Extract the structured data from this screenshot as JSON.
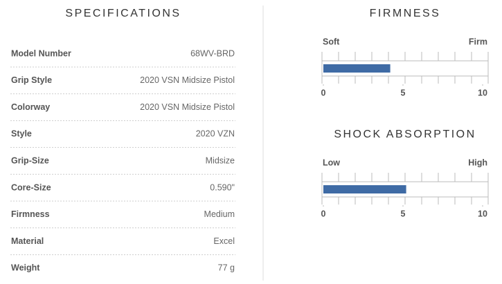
{
  "specifications": {
    "title": "SPECIFICATIONS",
    "rows": [
      [
        "Model Number",
        "68WV-BRD"
      ],
      [
        "Grip Style",
        "2020 VSN Midsize Pistol"
      ],
      [
        "Colorway",
        "2020 VSN Midsize Pistol"
      ],
      [
        "Style",
        "2020 VZN"
      ],
      [
        "Grip-Size",
        "Midsize"
      ],
      [
        "Core-Size",
        "0.590\""
      ],
      [
        "Firmness",
        "Medium"
      ],
      [
        "Material",
        "Excel"
      ],
      [
        "Weight",
        "77 g"
      ]
    ]
  },
  "gauges": [
    {
      "title": "FIRMNESS",
      "low_label": "Soft",
      "high_label": "Firm",
      "range": [
        0,
        10
      ],
      "ticks": [
        0,
        5,
        10
      ],
      "value": 4.2,
      "color": "#3f6ba5"
    },
    {
      "title": "SHOCK ABSORPTION",
      "low_label": "Low",
      "high_label": "High",
      "range": [
        0,
        10
      ],
      "ticks": [
        0,
        5,
        10
      ],
      "value": 5.2,
      "color": "#3f6ba5"
    }
  ]
}
